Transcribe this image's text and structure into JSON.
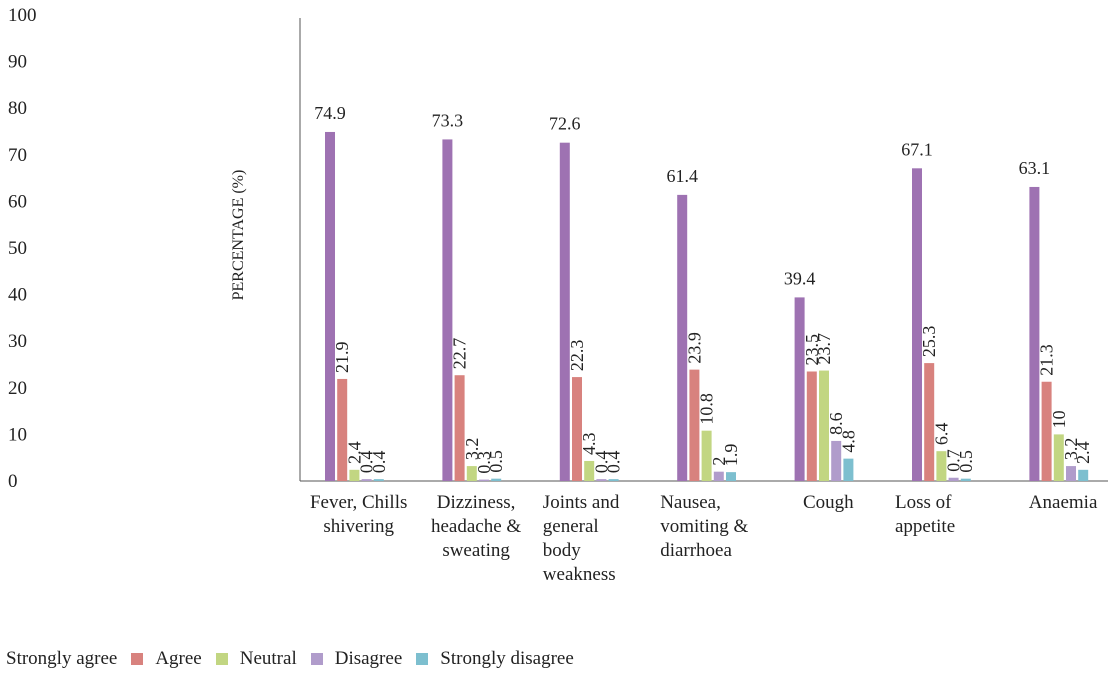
{
  "chart_data": {
    "type": "bar",
    "ylabel": "PERCENTAGE (%)",
    "xlabel": "",
    "ylim": [
      0,
      100
    ],
    "yticks": [
      "0",
      "10",
      "20",
      "30",
      "40",
      "50",
      "60",
      "70",
      "80",
      "90",
      "100"
    ],
    "grid": false,
    "legend_position": "bottom",
    "categories": [
      "Fever, Chills shivering",
      "Dizziness, headache & sweating",
      "Joints and general body weakness",
      "Nausea, vomiting & diarrhoea",
      "Cough",
      "Loss of appetite",
      "Anaemia"
    ],
    "series": [
      {
        "name": "Strongly agree",
        "color": "#9e72b2",
        "values": [
          74.9,
          73.3,
          72.6,
          61.4,
          39.4,
          67.1,
          63.1
        ]
      },
      {
        "name": "Agree",
        "color": "#d8827e",
        "values": [
          21.9,
          22.7,
          22.3,
          23.9,
          23.5,
          25.3,
          21.3
        ]
      },
      {
        "name": "Neutral",
        "color": "#c2d682",
        "values": [
          2.4,
          3.2,
          4.3,
          10.8,
          23.7,
          6.4,
          10
        ]
      },
      {
        "name": "Disagree",
        "color": "#b09ccb",
        "values": [
          0.4,
          0.3,
          0.4,
          2,
          8.6,
          0.7,
          3.2
        ]
      },
      {
        "name": "Strongly disagree",
        "color": "#7dbfcf",
        "values": [
          0.4,
          0.5,
          0.4,
          1.9,
          4.8,
          0.5,
          2.4
        ]
      }
    ]
  }
}
